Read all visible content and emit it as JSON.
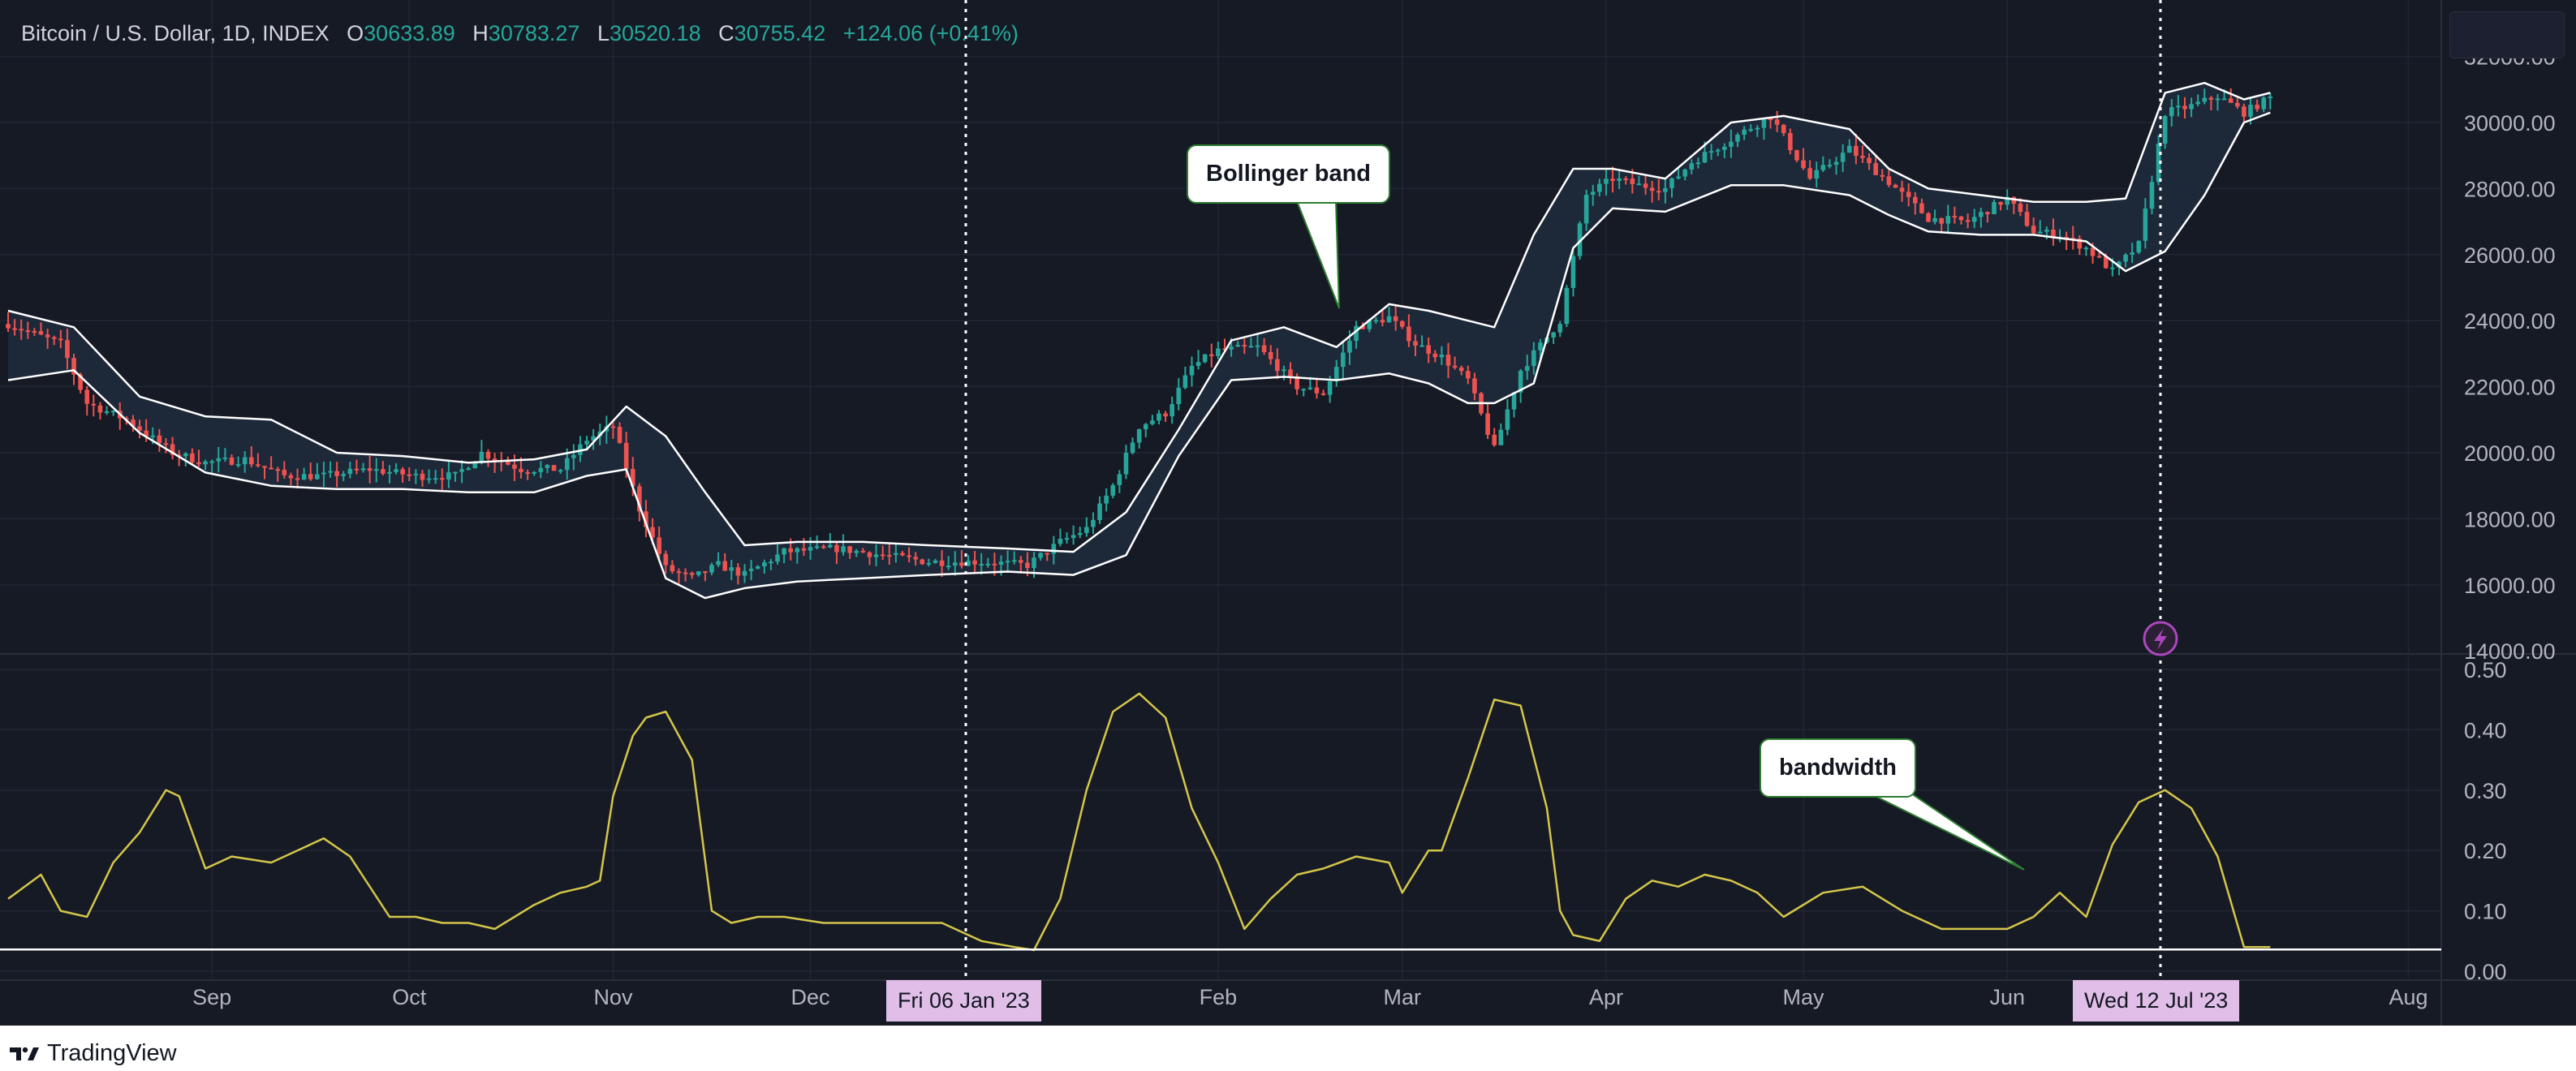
{
  "header": {
    "symbol": "Bitcoin / U.S. Dollar, 1D, INDEX",
    "o_label": "O",
    "o_value": "30633.89",
    "h_label": "H",
    "h_value": "30783.27",
    "l_label": "L",
    "l_value": "30520.18",
    "c_label": "C",
    "c_value": "30755.42",
    "change": "+124.06 (+0.41%)"
  },
  "annotations": {
    "bollinger": "Bollinger band",
    "bandwidth": "bandwidth"
  },
  "crosshair_labels": {
    "left": "Fri 06 Jan '23",
    "right": "Wed 12 Jul '23"
  },
  "footer": {
    "brand": "TradingView"
  },
  "colors": {
    "background": "#161a25",
    "grid": "#222633",
    "up": "#26a69a",
    "down": "#ef5350",
    "band_line": "#ffffff",
    "band_fill": "#1e2a3c",
    "bandwidth_line": "#d4c64a",
    "crosshair": "#ffffff",
    "marker": "#ab47bc"
  },
  "chart_data": [
    {
      "type": "candlestick",
      "title": "Bitcoin / U.S. Dollar, 1D, INDEX",
      "ylim": [
        14000,
        32000
      ],
      "yticks": [
        "32000.00",
        "30000.00",
        "28000.00",
        "26000.00",
        "24000.00",
        "22000.00",
        "20000.00",
        "18000.00",
        "16000.00",
        "14000.00"
      ],
      "x_tick_labels": [
        "Sep",
        "Oct",
        "Nov",
        "Dec",
        "Feb",
        "Mar",
        "Apr",
        "May",
        "Jun",
        "Aug"
      ],
      "x_tick_days": [
        31,
        61,
        92,
        122,
        184,
        212,
        243,
        273,
        304,
        365
      ],
      "x_range_days": [
        0,
        370
      ],
      "price_series": {
        "name": "close",
        "days": [
          0,
          8,
          12,
          18,
          25,
          30,
          36,
          42,
          48,
          55,
          62,
          68,
          72,
          78,
          84,
          88,
          92,
          96,
          100,
          104,
          108,
          112,
          118,
          126,
          133,
          140,
          148,
          155,
          160,
          164,
          168,
          172,
          176,
          180,
          184,
          190,
          196,
          200,
          205,
          210,
          214,
          218,
          222,
          226,
          230,
          236,
          240,
          244,
          248,
          252,
          256,
          262,
          268,
          274,
          280,
          286,
          292,
          298,
          304,
          308,
          312,
          316,
          320,
          324,
          328,
          332,
          336,
          340,
          344
        ],
        "values": [
          23900,
          23300,
          21500,
          21000,
          20000,
          19700,
          19800,
          19300,
          19300,
          19500,
          19300,
          19300,
          20000,
          19500,
          19500,
          20400,
          20800,
          18300,
          16500,
          16200,
          16600,
          16300,
          17000,
          17100,
          16900,
          16700,
          16700,
          16600,
          17300,
          17700,
          19000,
          20800,
          21200,
          22600,
          23100,
          23200,
          22000,
          21800,
          23800,
          24100,
          23300,
          22900,
          22200,
          20100,
          22500,
          24000,
          27800,
          28300,
          28100,
          28000,
          28800,
          29500,
          30200,
          28300,
          29200,
          28200,
          27100,
          27000,
          27700,
          26700,
          26600,
          26200,
          25500,
          26300,
          30300,
          30500,
          30800,
          30300,
          30750
        ]
      },
      "bollinger_upper": {
        "days": [
          0,
          10,
          20,
          30,
          40,
          50,
          60,
          70,
          80,
          88,
          94,
          100,
          106,
          112,
          120,
          130,
          140,
          152,
          162,
          170,
          178,
          186,
          194,
          202,
          210,
          216,
          222,
          226,
          232,
          238,
          244,
          252,
          262,
          270,
          280,
          286,
          292,
          300,
          308,
          316,
          322,
          328,
          334,
          340,
          344
        ],
        "values": [
          24300,
          23800,
          21700,
          21100,
          21000,
          20000,
          19900,
          19700,
          19800,
          20100,
          21400,
          20500,
          18800,
          17200,
          17300,
          17300,
          17200,
          17100,
          17000,
          18200,
          20700,
          23400,
          23800,
          23200,
          24500,
          24300,
          24000,
          23800,
          26600,
          28600,
          28600,
          28300,
          30000,
          30200,
          29800,
          28600,
          28000,
          27800,
          27600,
          27600,
          27700,
          30900,
          31200,
          30700,
          30900
        ]
      },
      "bollinger_lower": {
        "days": [
          0,
          10,
          20,
          30,
          40,
          50,
          60,
          70,
          80,
          88,
          94,
          100,
          106,
          112,
          120,
          130,
          140,
          152,
          162,
          170,
          178,
          186,
          194,
          202,
          210,
          216,
          222,
          226,
          232,
          238,
          244,
          252,
          262,
          270,
          280,
          286,
          292,
          300,
          308,
          316,
          322,
          328,
          334,
          340,
          344
        ],
        "values": [
          22200,
          22500,
          20600,
          19400,
          19000,
          18900,
          18900,
          18800,
          18800,
          19300,
          19500,
          16200,
          15600,
          15900,
          16100,
          16200,
          16300,
          16400,
          16300,
          16900,
          19900,
          22200,
          22300,
          22200,
          22400,
          22100,
          21500,
          21500,
          22100,
          26200,
          27400,
          27300,
          28100,
          28100,
          27800,
          27200,
          26700,
          26600,
          26600,
          26400,
          25500,
          26100,
          27800,
          30000,
          30300
        ]
      }
    },
    {
      "type": "line",
      "title": "bandwidth",
      "ylim": [
        0,
        0.5
      ],
      "yticks": [
        "0.50",
        "0.40",
        "0.30",
        "0.20",
        "0.10",
        "0.00"
      ],
      "reference_line": 0.036,
      "series": [
        {
          "days": [
            0,
            5,
            8,
            12,
            16,
            20,
            24,
            26,
            30,
            34,
            40,
            44,
            48,
            52,
            58,
            62,
            66,
            70,
            74,
            80,
            84,
            88,
            90,
            92,
            95,
            97,
            100,
            104,
            107,
            110,
            114,
            118,
            124,
            130,
            136,
            142,
            148,
            153,
            156,
            160,
            164,
            168,
            172,
            176,
            180,
            184,
            188,
            192,
            196,
            200,
            205,
            210,
            212,
            216,
            218,
            222,
            226,
            230,
            234,
            236,
            238,
            242,
            246,
            250,
            254,
            258,
            262,
            266,
            270,
            276,
            282,
            288,
            294,
            300,
            304,
            308,
            312,
            316,
            320,
            324,
            328,
            332,
            336,
            340,
            344
          ],
          "values": [
            0.12,
            0.16,
            0.1,
            0.09,
            0.18,
            0.23,
            0.3,
            0.29,
            0.17,
            0.19,
            0.18,
            0.2,
            0.22,
            0.19,
            0.09,
            0.09,
            0.08,
            0.08,
            0.07,
            0.11,
            0.13,
            0.14,
            0.15,
            0.29,
            0.39,
            0.42,
            0.43,
            0.35,
            0.1,
            0.08,
            0.09,
            0.09,
            0.08,
            0.08,
            0.08,
            0.08,
            0.05,
            0.04,
            0.035,
            0.12,
            0.3,
            0.43,
            0.46,
            0.42,
            0.27,
            0.18,
            0.07,
            0.12,
            0.16,
            0.17,
            0.19,
            0.18,
            0.13,
            0.2,
            0.2,
            0.32,
            0.45,
            0.44,
            0.27,
            0.1,
            0.06,
            0.05,
            0.12,
            0.15,
            0.14,
            0.16,
            0.15,
            0.13,
            0.09,
            0.13,
            0.14,
            0.1,
            0.07,
            0.07,
            0.07,
            0.09,
            0.13,
            0.09,
            0.21,
            0.28,
            0.3,
            0.27,
            0.19,
            0.04,
            0.04
          ]
        }
      ]
    }
  ]
}
